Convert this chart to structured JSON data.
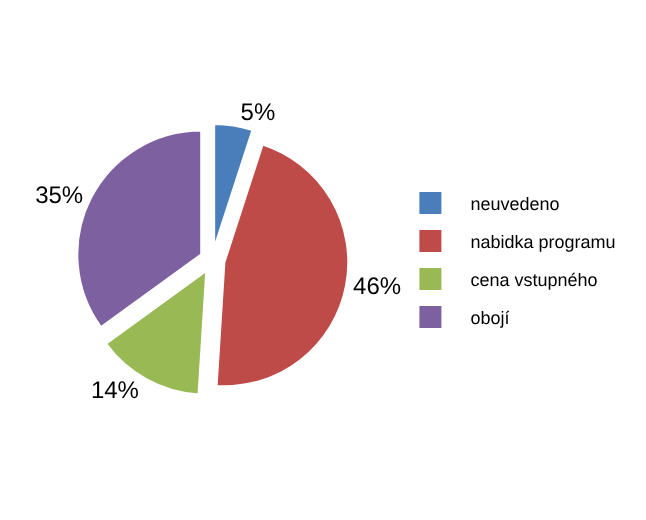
{
  "chart_data": {
    "type": "pie",
    "categories": [
      "neuvedeno",
      "nabidka programu",
      "cena vstupného",
      "obojí"
    ],
    "values": [
      5,
      46,
      14,
      35
    ],
    "value_labels": [
      "5%",
      "46%",
      "14%",
      "35%"
    ],
    "colors": [
      "#4a7ebb",
      "#be4b48",
      "#98b954",
      "#7d60a0"
    ],
    "legend": "right"
  }
}
